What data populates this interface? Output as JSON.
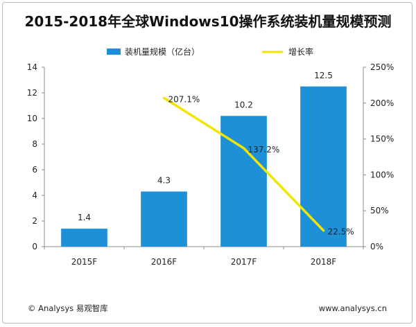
{
  "chart_data": {
    "type": "bar",
    "title": "2015-2018年全球Windows10操作系统装机量规模预测",
    "categories": [
      "2015F",
      "2016F",
      "2017F",
      "2018F"
    ],
    "series": [
      {
        "name": "装机量规模（亿台）",
        "type": "bar",
        "axis": "left",
        "values": [
          1.4,
          4.3,
          10.2,
          12.5
        ],
        "labels": [
          "1.4",
          "4.3",
          "10.2",
          "12.5"
        ],
        "color": "#1e90d8"
      },
      {
        "name": "增长率",
        "type": "line",
        "axis": "right",
        "values": [
          null,
          207.1,
          137.2,
          22.5
        ],
        "labels": [
          "",
          "207.1%",
          "137.2%",
          "22.5%"
        ],
        "color": "#f2e600"
      }
    ],
    "y_left": {
      "min": 0,
      "max": 14,
      "step": 2,
      "ticks": [
        "0",
        "2",
        "4",
        "6",
        "8",
        "10",
        "12",
        "14"
      ]
    },
    "y_right": {
      "min": 0,
      "max": 250,
      "step": 50,
      "ticks": [
        "0%",
        "50%",
        "100%",
        "150%",
        "200%",
        "250%"
      ]
    },
    "legend_position": "top",
    "grid": false
  },
  "footer": {
    "source": "© Analysys 易观智库",
    "url": "www.analysys.cn"
  }
}
